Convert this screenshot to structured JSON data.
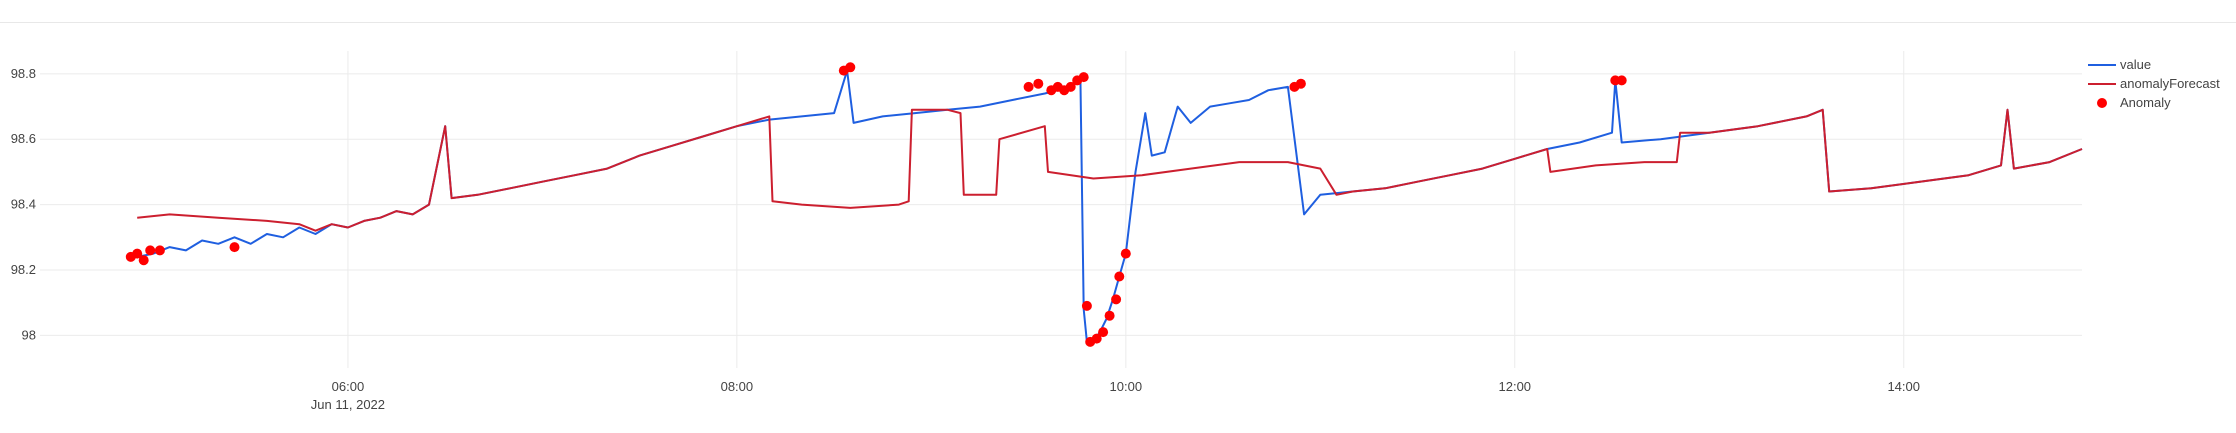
{
  "chart_data": {
    "type": "line",
    "title": "",
    "xlabel": "",
    "ylabel": "",
    "grid": true,
    "legend_position": "top-right",
    "x_range": [
      "2022-06-11T04:25:00",
      "2022-06-11T14:55:00"
    ],
    "y_range": [
      97.9,
      98.87
    ],
    "x_ticks": [
      {
        "time": "2022-06-11T06:00:00",
        "label": "06:00",
        "sublabel": "Jun 11, 2022"
      },
      {
        "time": "2022-06-11T08:00:00",
        "label": "08:00"
      },
      {
        "time": "2022-06-11T10:00:00",
        "label": "10:00"
      },
      {
        "time": "2022-06-11T12:00:00",
        "label": "12:00"
      },
      {
        "time": "2022-06-11T14:00:00",
        "label": "14:00"
      }
    ],
    "y_ticks": [
      {
        "value": 98.8,
        "label": "98.8"
      },
      {
        "value": 98.6,
        "label": "98.6"
      },
      {
        "value": 98.4,
        "label": "98.4"
      },
      {
        "value": 98.2,
        "label": "98.2"
      },
      {
        "value": 98.0,
        "label": "98"
      }
    ],
    "legend": [
      {
        "name": "value",
        "color": "#1f5fe0",
        "kind": "line"
      },
      {
        "name": "anomalyForecast",
        "color": "#cc1f2f",
        "kind": "line"
      },
      {
        "name": "Anomaly",
        "color": "#ff0000",
        "kind": "marker"
      }
    ],
    "series": [
      {
        "name": "value",
        "color": "#1f5fe0",
        "points": [
          [
            "04:55",
            98.24
          ],
          [
            "05:00",
            98.25
          ],
          [
            "05:05",
            98.27
          ],
          [
            "05:10",
            98.26
          ],
          [
            "05:15",
            98.29
          ],
          [
            "05:20",
            98.28
          ],
          [
            "05:25",
            98.3
          ],
          [
            "05:30",
            98.28
          ],
          [
            "05:35",
            98.31
          ],
          [
            "05:40",
            98.3
          ],
          [
            "05:45",
            98.33
          ],
          [
            "05:50",
            98.31
          ],
          [
            "05:55",
            98.34
          ],
          [
            "06:00",
            98.33
          ],
          [
            "06:05",
            98.35
          ],
          [
            "06:10",
            98.36
          ],
          [
            "06:15",
            98.38
          ],
          [
            "06:20",
            98.37
          ],
          [
            "06:25",
            98.4
          ],
          [
            "06:30",
            98.64
          ],
          [
            "06:32",
            98.42
          ],
          [
            "06:40",
            98.43
          ],
          [
            "06:50",
            98.45
          ],
          [
            "07:00",
            98.47
          ],
          [
            "07:10",
            98.49
          ],
          [
            "07:20",
            98.51
          ],
          [
            "07:30",
            98.55
          ],
          [
            "07:40",
            98.58
          ],
          [
            "07:50",
            98.61
          ],
          [
            "08:00",
            98.64
          ],
          [
            "08:10",
            98.66
          ],
          [
            "08:20",
            98.67
          ],
          [
            "08:30",
            98.68
          ],
          [
            "08:34",
            98.81
          ],
          [
            "08:36",
            98.65
          ],
          [
            "08:45",
            98.67
          ],
          [
            "08:55",
            98.68
          ],
          [
            "09:05",
            98.69
          ],
          [
            "09:15",
            98.7
          ],
          [
            "09:25",
            98.72
          ],
          [
            "09:35",
            98.74
          ],
          [
            "09:43",
            98.76
          ],
          [
            "09:46",
            98.79
          ],
          [
            "09:47",
            98.08
          ],
          [
            "09:48",
            97.98
          ],
          [
            "09:50",
            97.98
          ],
          [
            "09:52",
            98.01
          ],
          [
            "09:54",
            98.05
          ],
          [
            "09:56",
            98.11
          ],
          [
            "09:58",
            98.18
          ],
          [
            "10:00",
            98.25
          ],
          [
            "10:03",
            98.5
          ],
          [
            "10:06",
            98.68
          ],
          [
            "10:08",
            98.55
          ],
          [
            "10:12",
            98.56
          ],
          [
            "10:16",
            98.7
          ],
          [
            "10:20",
            98.65
          ],
          [
            "10:26",
            98.7
          ],
          [
            "10:32",
            98.71
          ],
          [
            "10:38",
            98.72
          ],
          [
            "10:44",
            98.75
          ],
          [
            "10:50",
            98.76
          ],
          [
            "10:55",
            98.37
          ],
          [
            "11:00",
            98.43
          ],
          [
            "11:10",
            98.44
          ],
          [
            "11:20",
            98.45
          ],
          [
            "11:30",
            98.47
          ],
          [
            "11:40",
            98.49
          ],
          [
            "11:50",
            98.51
          ],
          [
            "12:00",
            98.54
          ],
          [
            "12:10",
            98.57
          ],
          [
            "12:20",
            98.59
          ],
          [
            "12:30",
            98.62
          ],
          [
            "12:31",
            98.78
          ],
          [
            "12:33",
            98.59
          ],
          [
            "12:45",
            98.6
          ],
          [
            "13:00",
            98.62
          ],
          [
            "13:15",
            98.64
          ],
          [
            "13:30",
            98.67
          ],
          [
            "13:35",
            98.69
          ],
          [
            "13:37",
            98.44
          ],
          [
            "13:50",
            98.45
          ],
          [
            "14:05",
            98.47
          ],
          [
            "14:20",
            98.49
          ],
          [
            "14:30",
            98.52
          ],
          [
            "14:32",
            98.69
          ],
          [
            "14:34",
            98.51
          ],
          [
            "14:45",
            98.53
          ],
          [
            "14:55",
            98.57
          ]
        ]
      },
      {
        "name": "anomalyForecast",
        "color": "#cc1f2f",
        "points": [
          [
            "04:55",
            98.36
          ],
          [
            "05:05",
            98.37
          ],
          [
            "05:20",
            98.36
          ],
          [
            "05:35",
            98.35
          ],
          [
            "05:45",
            98.34
          ],
          [
            "05:50",
            98.32
          ],
          [
            "05:55",
            98.34
          ],
          [
            "06:00",
            98.33
          ],
          [
            "06:05",
            98.35
          ],
          [
            "06:10",
            98.36
          ],
          [
            "06:15",
            98.38
          ],
          [
            "06:20",
            98.37
          ],
          [
            "06:25",
            98.4
          ],
          [
            "06:30",
            98.64
          ],
          [
            "06:32",
            98.42
          ],
          [
            "06:40",
            98.43
          ],
          [
            "06:50",
            98.45
          ],
          [
            "07:00",
            98.47
          ],
          [
            "07:10",
            98.49
          ],
          [
            "07:20",
            98.51
          ],
          [
            "07:30",
            98.55
          ],
          [
            "07:40",
            98.58
          ],
          [
            "07:50",
            98.61
          ],
          [
            "08:00",
            98.64
          ],
          [
            "08:10",
            98.67
          ],
          [
            "08:11",
            98.41
          ],
          [
            "08:20",
            98.4
          ],
          [
            "08:35",
            98.39
          ],
          [
            "08:50",
            98.4
          ],
          [
            "08:53",
            98.41
          ],
          [
            "08:54",
            98.69
          ],
          [
            "09:05",
            98.69
          ],
          [
            "09:09",
            98.68
          ],
          [
            "09:10",
            98.43
          ],
          [
            "09:20",
            98.43
          ],
          [
            "09:21",
            98.6
          ],
          [
            "09:35",
            98.64
          ],
          [
            "09:36",
            98.5
          ],
          [
            "09:50",
            98.48
          ],
          [
            "10:05",
            98.49
          ],
          [
            "10:20",
            98.51
          ],
          [
            "10:35",
            98.53
          ],
          [
            "10:50",
            98.53
          ],
          [
            "11:00",
            98.51
          ],
          [
            "11:05",
            98.43
          ],
          [
            "11:10",
            98.44
          ],
          [
            "11:20",
            98.45
          ],
          [
            "11:30",
            98.47
          ],
          [
            "11:40",
            98.49
          ],
          [
            "11:50",
            98.51
          ],
          [
            "12:00",
            98.54
          ],
          [
            "12:10",
            98.57
          ],
          [
            "12:11",
            98.5
          ],
          [
            "12:25",
            98.52
          ],
          [
            "12:40",
            98.53
          ],
          [
            "12:50",
            98.53
          ],
          [
            "12:51",
            98.62
          ],
          [
            "13:00",
            98.62
          ],
          [
            "13:15",
            98.64
          ],
          [
            "13:30",
            98.67
          ],
          [
            "13:35",
            98.69
          ],
          [
            "13:37",
            98.44
          ],
          [
            "13:50",
            98.45
          ],
          [
            "14:05",
            98.47
          ],
          [
            "14:20",
            98.49
          ],
          [
            "14:30",
            98.52
          ],
          [
            "14:32",
            98.69
          ],
          [
            "14:34",
            98.51
          ],
          [
            "14:45",
            98.53
          ],
          [
            "14:55",
            98.57
          ]
        ]
      },
      {
        "name": "Anomaly",
        "color": "#ff0000",
        "points": [
          [
            "04:53",
            98.24
          ],
          [
            "04:55",
            98.25
          ],
          [
            "04:57",
            98.23
          ],
          [
            "04:59",
            98.26
          ],
          [
            "05:02",
            98.26
          ],
          [
            "05:25",
            98.27
          ],
          [
            "08:33",
            98.81
          ],
          [
            "08:35",
            98.82
          ],
          [
            "09:30",
            98.76
          ],
          [
            "09:33",
            98.77
          ],
          [
            "09:37",
            98.75
          ],
          [
            "09:39",
            98.76
          ],
          [
            "09:41",
            98.75
          ],
          [
            "09:43",
            98.76
          ],
          [
            "09:45",
            98.78
          ],
          [
            "09:47",
            98.79
          ],
          [
            "09:48",
            98.09
          ],
          [
            "09:49",
            97.98
          ],
          [
            "09:51",
            97.99
          ],
          [
            "09:53",
            98.01
          ],
          [
            "09:55",
            98.06
          ],
          [
            "09:57",
            98.11
          ],
          [
            "09:58",
            98.18
          ],
          [
            "10:00",
            98.25
          ],
          [
            "10:52",
            98.76
          ],
          [
            "10:54",
            98.77
          ],
          [
            "12:31",
            98.78
          ],
          [
            "12:33",
            98.78
          ]
        ]
      }
    ]
  }
}
